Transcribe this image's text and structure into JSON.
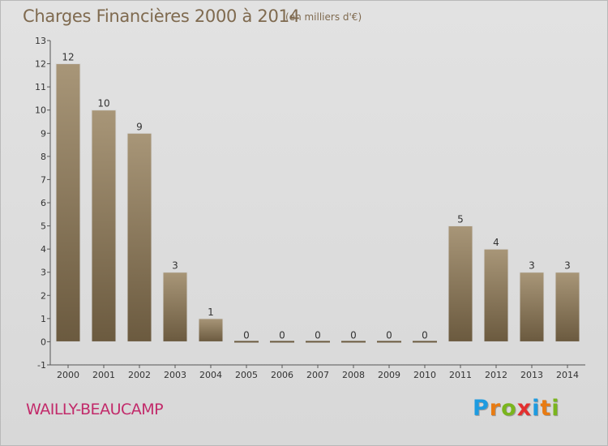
{
  "header": {
    "title": "Charges Financières 2000 à 2014",
    "subtitle": "(en milliers d'€)"
  },
  "footer": {
    "place": "WAILLY-BEAUCAMP",
    "logo": {
      "letters": [
        "P",
        "r",
        "o",
        "x",
        "i",
        "t",
        "i"
      ],
      "colors": [
        "#1e9be0",
        "#e87b12",
        "#7ab51d",
        "#e32f2f",
        "#1e9be0",
        "#e87b12",
        "#7ab51d"
      ]
    }
  },
  "colors": {
    "bar_top": "#a89678",
    "bar_bottom": "#6b5a3f",
    "title": "#7f6a4f",
    "place": "#c22a6a"
  },
  "chart_data": {
    "type": "bar",
    "categories": [
      "2000",
      "2001",
      "2002",
      "2003",
      "2004",
      "2005",
      "2006",
      "2007",
      "2008",
      "2009",
      "2010",
      "2011",
      "2012",
      "2013",
      "2014"
    ],
    "values": [
      12,
      10,
      9,
      3,
      1,
      0,
      0,
      0,
      0,
      0,
      0,
      5,
      4,
      3,
      3
    ],
    "data_labels": [
      "12",
      "10",
      "9",
      "3",
      "1",
      "0",
      "0",
      "0",
      "0",
      "0",
      "0",
      "5",
      "4",
      "3",
      "3"
    ],
    "yticks": [
      "-1",
      "0",
      "1",
      "2",
      "3",
      "4",
      "5",
      "6",
      "7",
      "8",
      "9",
      "10",
      "11",
      "12",
      "13"
    ],
    "title": "Charges Financières 2000 à 2014",
    "xlabel": "",
    "ylabel": "",
    "ylim": [
      -1,
      13
    ],
    "grid": false,
    "legend": "none"
  }
}
